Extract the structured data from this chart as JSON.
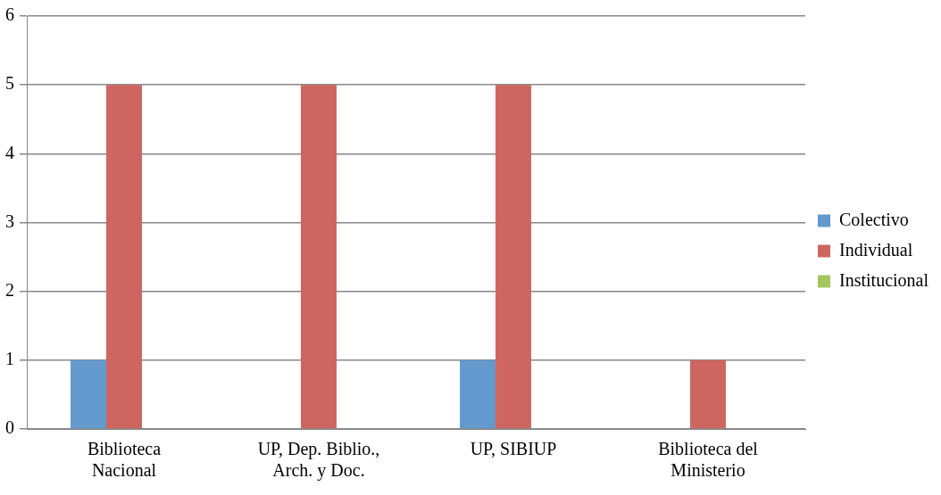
{
  "chart_data": {
    "type": "bar",
    "categories": [
      "Biblioteca Nacional",
      "UP, Dep. Biblio., Arch. y Doc.",
      "UP, SIBIUP",
      "Biblioteca del Ministerio"
    ],
    "series": [
      {
        "name": "Colectivo",
        "color": "#6399cd",
        "values": [
          1,
          0,
          1,
          0
        ]
      },
      {
        "name": "Individual",
        "color": "#cd6660",
        "values": [
          5,
          5,
          5,
          1
        ]
      },
      {
        "name": "Institucional",
        "color": "#a3c65f",
        "values": [
          0,
          0,
          0,
          0
        ]
      }
    ],
    "ylim": [
      0,
      6
    ],
    "yticks": [
      0,
      1,
      2,
      3,
      4,
      5,
      6
    ],
    "grid": "y",
    "legend": "right"
  }
}
